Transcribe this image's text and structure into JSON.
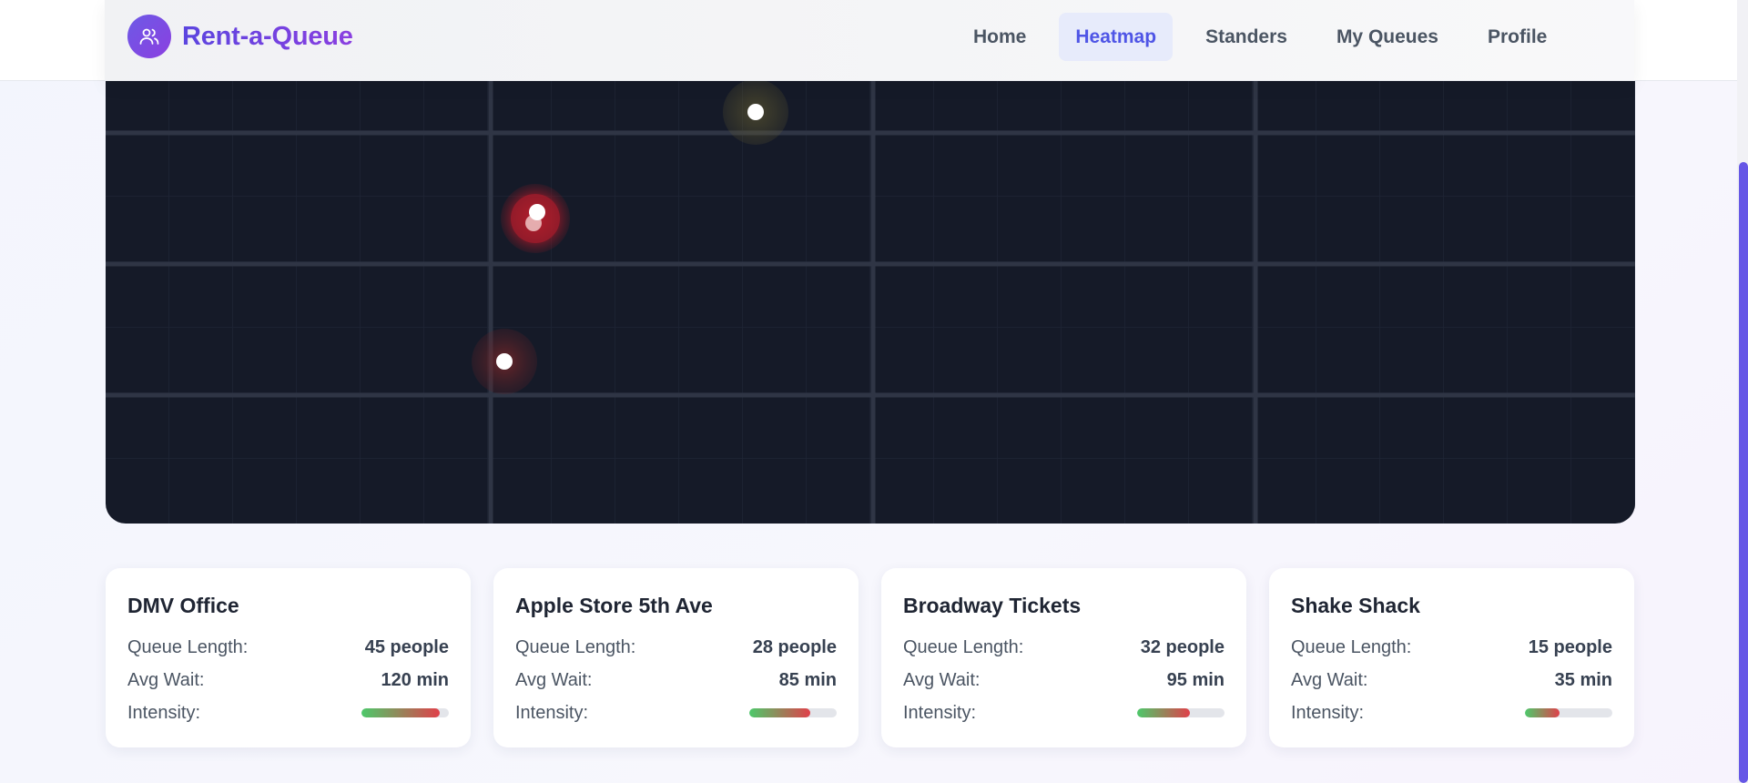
{
  "app": {
    "brand_name": "Rent-a-Queue",
    "brand_icon": "users-icon",
    "accent": "#5b45df"
  },
  "nav": {
    "items": [
      {
        "label": "Home",
        "active": false
      },
      {
        "label": "Heatmap",
        "active": true
      },
      {
        "label": "Standers",
        "active": false
      },
      {
        "label": "My Queues",
        "active": false
      },
      {
        "label": "Profile",
        "active": false
      }
    ]
  },
  "map": {
    "background": "#151a28",
    "markers": [
      {
        "intensity": "low",
        "color": "#8a7a3a"
      },
      {
        "intensity": "high",
        "color": "#d11f2f"
      },
      {
        "intensity": "medium",
        "color": "#a82a2a"
      }
    ]
  },
  "cards": [
    {
      "name": "DMV Office",
      "queue_label": "Queue Length:",
      "queue_value": "45 people",
      "wait_label": "Avg Wait:",
      "wait_value": "120 min",
      "intensity_label": "Intensity:",
      "intensity": 0.9
    },
    {
      "name": "Apple Store 5th Ave",
      "queue_label": "Queue Length:",
      "queue_value": "28 people",
      "wait_label": "Avg Wait:",
      "wait_value": "85 min",
      "intensity_label": "Intensity:",
      "intensity": 0.7
    },
    {
      "name": "Broadway Tickets",
      "queue_label": "Queue Length:",
      "queue_value": "32 people",
      "wait_label": "Avg Wait:",
      "wait_value": "95 min",
      "intensity_label": "Intensity:",
      "intensity": 0.6
    },
    {
      "name": "Shake Shack",
      "queue_label": "Queue Length:",
      "queue_value": "15 people",
      "wait_label": "Avg Wait:",
      "wait_value": "35 min",
      "intensity_label": "Intensity:",
      "intensity": 0.4
    }
  ]
}
